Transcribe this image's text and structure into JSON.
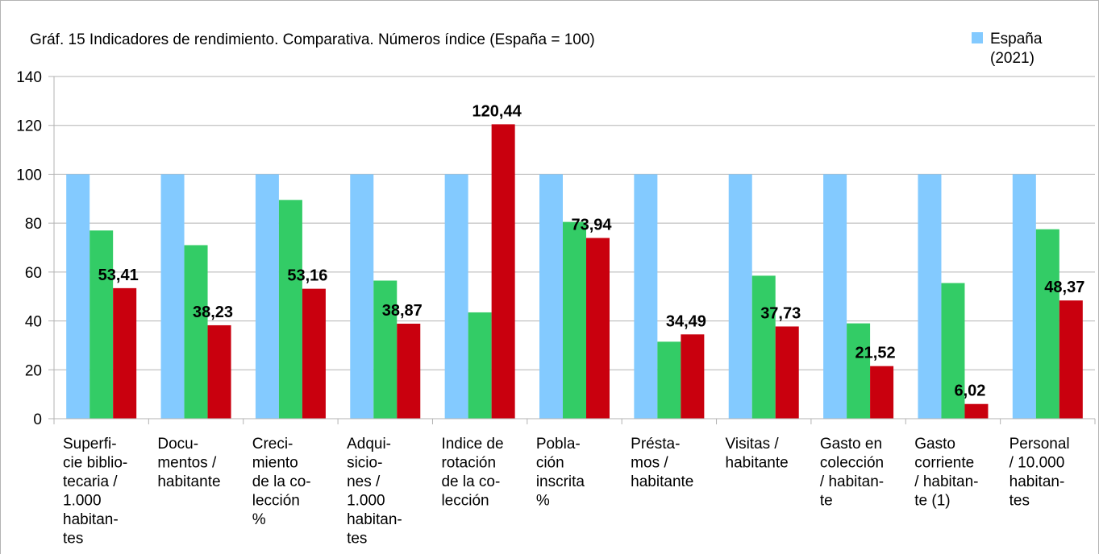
{
  "chart_data": {
    "type": "bar",
    "title": "Gráf. 15 Indicadores de rendimiento. Comparativa. Números índice (España = 100)",
    "categories": [
      [
        "Superfi-",
        "cie biblio-",
        "tecaria /",
        "1.000",
        "habitan-",
        "tes"
      ],
      [
        "Docu-",
        "mentos /",
        "habitante"
      ],
      [
        "Creci-",
        "miento",
        "de la co-",
        "lección",
        "%"
      ],
      [
        "Adqui-",
        "sicio-",
        "nes /",
        "1.000",
        "habitan-",
        "tes"
      ],
      [
        "Indice de",
        "rotación",
        "de la co-",
        "lección"
      ],
      [
        "Pobla-",
        "ción",
        "inscrita",
        "%"
      ],
      [
        "Présta-",
        "mos /",
        "habitante"
      ],
      [
        "Visitas /",
        "habitante"
      ],
      [
        "Gasto en",
        "colección",
        "/ habitan-",
        "te"
      ],
      [
        "Gasto",
        "corriente",
        "/ habitan-",
        "te (1)"
      ],
      [
        "Personal",
        "/ 10.000",
        "habitan-",
        "tes"
      ]
    ],
    "series": [
      {
        "name": "España (2021)",
        "color": "#83caff",
        "values": [
          100,
          100,
          100,
          100,
          100,
          100,
          100,
          100,
          100,
          100,
          100
        ]
      },
      {
        "color": "#33cc66",
        "values": [
          77,
          71,
          89.5,
          56.5,
          43.5,
          80.5,
          31.5,
          58.5,
          39,
          55.5,
          77.5
        ]
      },
      {
        "color": "#c9000e",
        "values": [
          53.41,
          38.23,
          53.16,
          38.87,
          120.44,
          73.94,
          34.49,
          37.73,
          21.52,
          6.02,
          48.37
        ],
        "value_labels": [
          "53,41",
          "38,23",
          "53,16",
          "38,87",
          "120,44",
          "73,94",
          "34,49",
          "37,73",
          "21,52",
          "6,02",
          "48,37"
        ]
      }
    ],
    "ylim": [
      0,
      140
    ],
    "yticks": [
      0,
      20,
      40,
      60,
      80,
      100,
      120,
      140
    ],
    "grid": true,
    "legend": "top-right"
  }
}
